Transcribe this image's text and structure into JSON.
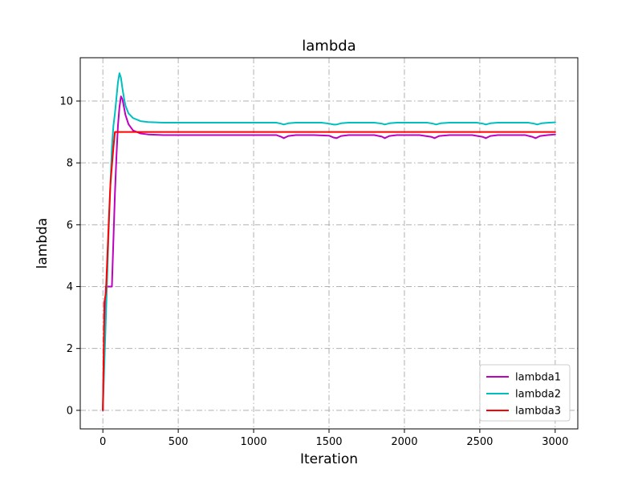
{
  "chart_data": {
    "type": "line",
    "title": "lambda",
    "xlabel": "Iteration",
    "ylabel": "lambda",
    "xlim": [
      -150,
      3150
    ],
    "ylim": [
      -0.6,
      11.4
    ],
    "xticks": [
      0,
      500,
      1000,
      1500,
      2000,
      2500,
      3000
    ],
    "yticks": [
      0,
      2,
      4,
      6,
      8,
      10
    ],
    "grid": true,
    "legend_position": "lower-right",
    "series": [
      {
        "name": "lambda1",
        "color": "#bf00bf",
        "x": [
          0,
          10,
          20,
          30,
          40,
          50,
          60,
          70,
          80,
          90,
          100,
          110,
          120,
          130,
          140,
          150,
          170,
          200,
          250,
          300,
          400,
          600,
          800,
          1000,
          1150,
          1180,
          1200,
          1230,
          1280,
          1400,
          1500,
          1530,
          1550,
          1580,
          1630,
          1800,
          1850,
          1870,
          1900,
          1950,
          2100,
          2180,
          2200,
          2230,
          2300,
          2450,
          2520,
          2540,
          2570,
          2620,
          2800,
          2850,
          2870,
          2900,
          2950,
          3000
        ],
        "y": [
          0,
          2.5,
          4.0,
          4.0,
          4.0,
          4.0,
          4.0,
          5.5,
          7.0,
          8.2,
          9.2,
          9.8,
          10.15,
          10.05,
          9.8,
          9.55,
          9.25,
          9.05,
          8.95,
          8.92,
          8.9,
          8.9,
          8.9,
          8.9,
          8.9,
          8.85,
          8.8,
          8.87,
          8.9,
          8.9,
          8.88,
          8.82,
          8.8,
          8.87,
          8.9,
          8.9,
          8.85,
          8.8,
          8.87,
          8.9,
          8.9,
          8.84,
          8.8,
          8.87,
          8.9,
          8.9,
          8.84,
          8.8,
          8.87,
          8.9,
          8.9,
          8.84,
          8.8,
          8.87,
          8.9,
          8.92
        ]
      },
      {
        "name": "lambda2",
        "color": "#00bfbf",
        "x": [
          0,
          10,
          20,
          30,
          40,
          50,
          60,
          70,
          80,
          90,
          100,
          110,
          120,
          130,
          140,
          150,
          170,
          200,
          250,
          300,
          400,
          600,
          800,
          1000,
          1150,
          1180,
          1200,
          1230,
          1280,
          1450,
          1500,
          1530,
          1550,
          1580,
          1630,
          1800,
          1850,
          1870,
          1900,
          1950,
          2150,
          2190,
          2210,
          2240,
          2300,
          2480,
          2520,
          2540,
          2570,
          2620,
          2820,
          2860,
          2880,
          2910,
          2960,
          3000
        ],
        "y": [
          0,
          1.5,
          3.0,
          4.5,
          6.0,
          7.3,
          8.5,
          9.2,
          9.6,
          10.1,
          10.6,
          10.9,
          10.75,
          10.4,
          10.1,
          9.85,
          9.6,
          9.45,
          9.35,
          9.32,
          9.3,
          9.3,
          9.3,
          9.3,
          9.3,
          9.27,
          9.24,
          9.28,
          9.3,
          9.3,
          9.27,
          9.24,
          9.24,
          9.28,
          9.3,
          9.3,
          9.27,
          9.24,
          9.28,
          9.3,
          9.3,
          9.27,
          9.24,
          9.28,
          9.3,
          9.3,
          9.27,
          9.24,
          9.28,
          9.3,
          9.3,
          9.27,
          9.24,
          9.28,
          9.3,
          9.31
        ]
      },
      {
        "name": "lambda3",
        "color": "#ff0000",
        "x": [
          0,
          10,
          20,
          30,
          40,
          50,
          60,
          70,
          80,
          90,
          100,
          150,
          500,
          1000,
          1500,
          2000,
          2500,
          3000
        ],
        "y": [
          0,
          3.5,
          3.8,
          5.0,
          6.2,
          7.3,
          7.9,
          8.5,
          9.0,
          9.0,
          9.0,
          9.0,
          9.0,
          9.0,
          9.0,
          9.0,
          9.0,
          9.0
        ]
      }
    ]
  }
}
